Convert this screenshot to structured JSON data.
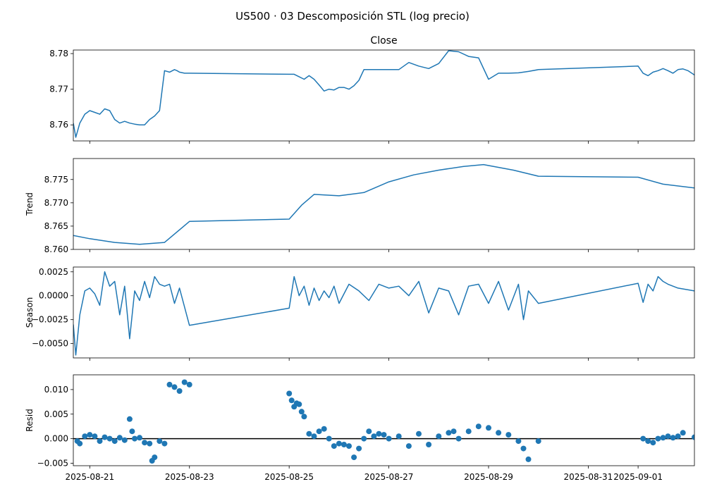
{
  "figure": {
    "suptitle": "US500 · 03 Descomposición STL (log precio)"
  },
  "chart_data": {
    "type": "line",
    "x_tick_labels": [
      "2025-08-21",
      "2025-08-23",
      "2025-08-25",
      "2025-08-27",
      "2025-08-29",
      "2025-08-31",
      "2025-09-01"
    ],
    "x_ticks": [
      1.0,
      3.0,
      5.0,
      7.0,
      9.0,
      11.0,
      12.0
    ],
    "xlim": [
      0.67,
      13.13
    ],
    "panels": [
      {
        "title": "Close",
        "ylabel": "",
        "type": "line",
        "ylim": [
          8.7555,
          8.781
        ],
        "yticks": [
          8.76,
          8.77,
          8.78
        ],
        "ytick_labels": [
          "8.76",
          "8.77",
          "8.78"
        ],
        "x": [
          0.67,
          0.72,
          0.8,
          0.9,
          1.0,
          1.1,
          1.2,
          1.3,
          1.4,
          1.5,
          1.6,
          1.7,
          1.8,
          1.9,
          2.0,
          2.1,
          2.2,
          2.3,
          2.4,
          2.5,
          2.6,
          2.7,
          2.75,
          2.8,
          2.9,
          3.0,
          5.0,
          5.1,
          5.2,
          5.3,
          5.4,
          5.5,
          5.6,
          5.7,
          5.8,
          5.9,
          6.0,
          6.1,
          6.2,
          6.3,
          6.4,
          6.5,
          6.6,
          6.7,
          6.8,
          6.9,
          7.0,
          7.2,
          7.4,
          7.6,
          7.8,
          8.0,
          8.2,
          8.4,
          8.6,
          8.8,
          9.0,
          9.2,
          9.4,
          9.6,
          9.7,
          9.8,
          10.0,
          12.0,
          12.1,
          12.2,
          12.3,
          12.4,
          12.5,
          12.6,
          12.7,
          12.8,
          12.9,
          13.0,
          13.13
        ],
        "values": [
          8.7605,
          8.7565,
          8.7605,
          8.763,
          8.764,
          8.7635,
          8.763,
          8.7645,
          8.764,
          8.7615,
          8.7605,
          8.761,
          8.7605,
          8.7602,
          8.76,
          8.76,
          8.7615,
          8.7625,
          8.764,
          8.7752,
          8.7748,
          8.7755,
          8.7752,
          8.7748,
          8.7745,
          8.7745,
          8.7742,
          8.7742,
          8.7735,
          8.7728,
          8.7738,
          8.7728,
          8.7712,
          8.7695,
          8.77,
          8.7698,
          8.7705,
          8.7705,
          8.77,
          8.771,
          8.7725,
          8.7755,
          8.7755,
          8.7755,
          8.7755,
          8.7755,
          8.7755,
          8.7755,
          8.7775,
          8.7765,
          8.7758,
          8.7772,
          8.7808,
          8.7805,
          8.7792,
          8.7788,
          8.7728,
          8.7745,
          8.7745,
          8.7746,
          8.7748,
          8.775,
          8.7755,
          8.7765,
          8.7745,
          8.7738,
          8.7748,
          8.7752,
          8.7758,
          8.7752,
          8.7745,
          8.7755,
          8.7757,
          8.7752,
          8.774
        ]
      },
      {
        "title": "",
        "ylabel": "Trend",
        "type": "line",
        "ylim": [
          8.76,
          8.7795
        ],
        "yticks": [
          8.76,
          8.765,
          8.77,
          8.775
        ],
        "ytick_labels": [
          "8.760",
          "8.765",
          "8.770",
          "8.775"
        ],
        "x": [
          0.67,
          1.0,
          1.5,
          2.0,
          2.5,
          3.0,
          5.0,
          5.25,
          5.5,
          6.0,
          6.5,
          7.0,
          7.5,
          8.0,
          8.5,
          8.9,
          9.5,
          10.0,
          12.0,
          12.5,
          13.13
        ],
        "values": [
          8.763,
          8.7623,
          8.7615,
          8.7611,
          8.7615,
          8.766,
          8.7665,
          8.7695,
          8.7718,
          8.7715,
          8.7722,
          8.7745,
          8.776,
          8.777,
          8.7778,
          8.7782,
          8.777,
          8.7757,
          8.7755,
          8.774,
          8.7732
        ]
      },
      {
        "title": "",
        "ylabel": "Season",
        "type": "line",
        "ylim": [
          -0.0065,
          0.003
        ],
        "yticks": [
          -0.005,
          -0.0025,
          0.0,
          0.0025
        ],
        "ytick_labels": [
          "−0.0050",
          "−0.0025",
          "0.0000",
          "0.0025"
        ],
        "x": [
          0.67,
          0.72,
          0.8,
          0.9,
          1.0,
          1.1,
          1.2,
          1.3,
          1.4,
          1.5,
          1.6,
          1.7,
          1.8,
          1.9,
          2.0,
          2.1,
          2.2,
          2.3,
          2.4,
          2.5,
          2.6,
          2.7,
          2.8,
          3.0,
          5.0,
          5.1,
          5.2,
          5.3,
          5.4,
          5.5,
          5.6,
          5.7,
          5.8,
          5.9,
          6.0,
          6.2,
          6.4,
          6.6,
          6.8,
          7.0,
          7.2,
          7.4,
          7.6,
          7.8,
          8.0,
          8.2,
          8.4,
          8.6,
          8.8,
          9.0,
          9.2,
          9.4,
          9.6,
          9.7,
          9.8,
          10.0,
          12.0,
          12.1,
          12.2,
          12.3,
          12.4,
          12.5,
          12.6,
          12.7,
          12.8,
          13.13
        ],
        "values": [
          -0.003,
          -0.0062,
          -0.002,
          0.0005,
          0.0008,
          0.0002,
          -0.001,
          0.0025,
          0.001,
          0.0015,
          -0.002,
          0.001,
          -0.0045,
          0.0005,
          -0.0005,
          0.0015,
          -0.0002,
          0.002,
          0.0012,
          0.001,
          0.0012,
          -0.0008,
          0.0008,
          -0.0031,
          -0.0013,
          0.002,
          0.0,
          0.001,
          -0.001,
          0.0008,
          -0.0005,
          0.0005,
          -0.0002,
          0.001,
          -0.0008,
          0.0012,
          0.0005,
          -0.0005,
          0.0012,
          0.0008,
          0.001,
          0.0,
          0.0015,
          -0.0018,
          0.0008,
          0.0005,
          -0.002,
          0.001,
          0.0012,
          -0.0008,
          0.0015,
          -0.0015,
          0.0012,
          -0.0025,
          0.0005,
          -0.0008,
          0.0013,
          -0.0007,
          0.0012,
          0.0005,
          0.002,
          0.0015,
          0.0012,
          0.001,
          0.0008,
          0.0005
        ]
      },
      {
        "title": "",
        "ylabel": "Resid",
        "type": "scatter",
        "ylim": [
          -0.0055,
          0.013
        ],
        "yticks": [
          -0.005,
          0.0,
          0.005,
          0.01
        ],
        "ytick_labels": [
          "−0.005",
          "0.000",
          "0.005",
          "0.010"
        ],
        "baseline": 0.0,
        "x": [
          0.75,
          0.8,
          0.9,
          1.0,
          1.1,
          1.2,
          1.3,
          1.4,
          1.5,
          1.6,
          1.7,
          1.8,
          1.85,
          1.9,
          2.0,
          2.1,
          2.2,
          2.25,
          2.3,
          2.4,
          2.5,
          2.6,
          2.7,
          2.8,
          2.9,
          3.0,
          5.0,
          5.05,
          5.1,
          5.15,
          5.2,
          5.25,
          5.3,
          5.4,
          5.5,
          5.6,
          5.7,
          5.8,
          5.9,
          6.0,
          6.1,
          6.2,
          6.3,
          6.4,
          6.5,
          6.6,
          6.7,
          6.8,
          6.9,
          7.0,
          7.2,
          7.4,
          7.6,
          7.8,
          8.0,
          8.2,
          8.3,
          8.4,
          8.6,
          8.8,
          9.0,
          9.2,
          9.4,
          9.6,
          9.7,
          9.8,
          10.0,
          12.1,
          12.2,
          12.3,
          12.4,
          12.5,
          12.6,
          12.7,
          12.8,
          12.9,
          13.13
        ],
        "values": [
          -0.0005,
          -0.001,
          0.0005,
          0.0008,
          0.0005,
          -0.0005,
          0.0003,
          0.0,
          -0.0005,
          0.0002,
          -0.0003,
          0.004,
          0.0015,
          0.0,
          0.0002,
          -0.0008,
          -0.001,
          -0.0045,
          -0.0038,
          -0.0005,
          -0.001,
          0.011,
          0.0105,
          0.0097,
          0.0115,
          0.011,
          0.0092,
          0.0078,
          0.0065,
          0.0072,
          0.007,
          0.0055,
          0.0045,
          0.001,
          0.0005,
          0.0015,
          0.002,
          0.0,
          -0.0015,
          -0.001,
          -0.0012,
          -0.0015,
          -0.0038,
          -0.002,
          0.0,
          0.0015,
          0.0005,
          0.001,
          0.0008,
          0.0,
          0.0005,
          -0.0015,
          0.001,
          -0.0012,
          0.0005,
          0.0012,
          0.0015,
          0.0,
          0.0015,
          0.0025,
          0.0022,
          0.0012,
          0.0008,
          -0.0005,
          -0.002,
          -0.0042,
          -0.0005,
          0.0,
          -0.0005,
          -0.0008,
          0.0,
          0.0002,
          0.0005,
          0.0002,
          0.0005,
          0.0012,
          0.0003
        ]
      }
    ]
  }
}
